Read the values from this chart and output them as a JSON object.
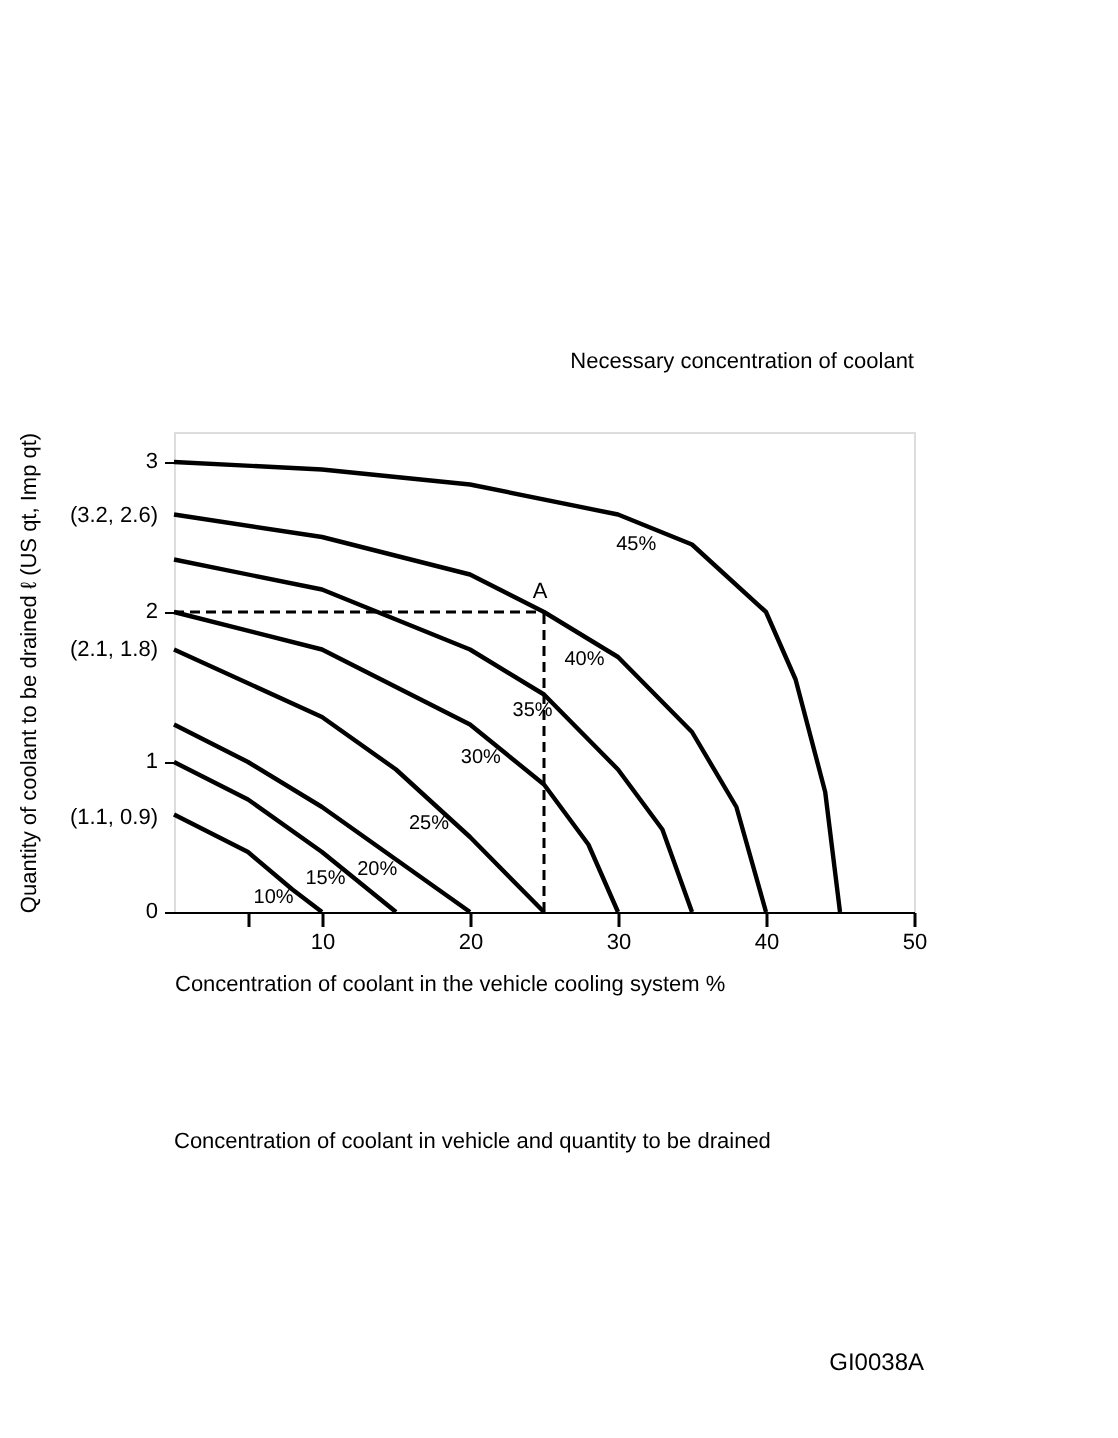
{
  "chart_data": {
    "type": "line",
    "title": "Concentration of coolant in vehicle and quantity to be drained",
    "xlabel": "Concentration of coolant in the vehicle cooling system %",
    "ylabel": "Quantity of coolant to be drained ℓ (US qt, Imp qt)",
    "xlim": [
      0,
      50
    ],
    "xticks": [
      {
        "value": 5,
        "label": null
      },
      10,
      20,
      30,
      40,
      50
    ],
    "ylim": [
      0,
      3.2
    ],
    "yticks": [
      0,
      {
        "value": 0.63,
        "label": "(1.1, 0.9)"
      },
      1,
      {
        "value": 1.75,
        "label": "(2.1, 1.8)"
      },
      2,
      {
        "value": 2.64,
        "label": "(3.2, 2.6)"
      },
      3
    ],
    "grid": false,
    "marker": "none",
    "line_style": "solid",
    "series": [
      {
        "name": "10%",
        "color": "#000000",
        "x": [
          0,
          5,
          8,
          10
        ],
        "values": [
          0.65,
          0.4,
          0.15,
          0
        ]
      },
      {
        "name": "15%",
        "color": "#000000",
        "x": [
          0,
          5,
          10,
          15
        ],
        "values": [
          1.0,
          0.75,
          0.4,
          0
        ]
      },
      {
        "name": "20%",
        "color": "#000000",
        "x": [
          0,
          5,
          10,
          15,
          20
        ],
        "values": [
          1.25,
          1.0,
          0.7,
          0.35,
          0
        ]
      },
      {
        "name": "25%",
        "color": "#000000",
        "x": [
          0,
          10,
          15,
          20,
          25
        ],
        "values": [
          1.75,
          1.3,
          0.95,
          0.5,
          0
        ]
      },
      {
        "name": "30%",
        "color": "#000000",
        "x": [
          0,
          10,
          20,
          25,
          28,
          30
        ],
        "values": [
          2.0,
          1.75,
          1.25,
          0.85,
          0.45,
          0
        ]
      },
      {
        "name": "35%",
        "color": "#000000",
        "x": [
          0,
          10,
          20,
          25,
          30,
          33,
          35
        ],
        "values": [
          2.35,
          2.15,
          1.75,
          1.45,
          0.95,
          0.55,
          0
        ]
      },
      {
        "name": "40%",
        "color": "#000000",
        "x": [
          0,
          10,
          20,
          25,
          30,
          35,
          38,
          40
        ],
        "values": [
          2.65,
          2.5,
          2.25,
          2.0,
          1.7,
          1.2,
          0.7,
          0
        ]
      },
      {
        "name": "45%",
        "color": "#000000",
        "x": [
          0,
          10,
          20,
          30,
          35,
          40,
          42,
          44,
          45
        ],
        "values": [
          3.0,
          2.95,
          2.85,
          2.65,
          2.45,
          2.0,
          1.55,
          0.8,
          0
        ]
      }
    ],
    "ref_lines": [
      {
        "axis": "y",
        "value": 2,
        "line_style": "dashed",
        "color": "#000000"
      },
      {
        "axis": "x",
        "value": 25,
        "line_style": "dashed",
        "color": "#000000"
      }
    ],
    "annotations": [
      "Necessary concentration of coolant",
      {
        "text": "A",
        "x": 25,
        "y": 2
      },
      "GI0038A"
    ]
  }
}
